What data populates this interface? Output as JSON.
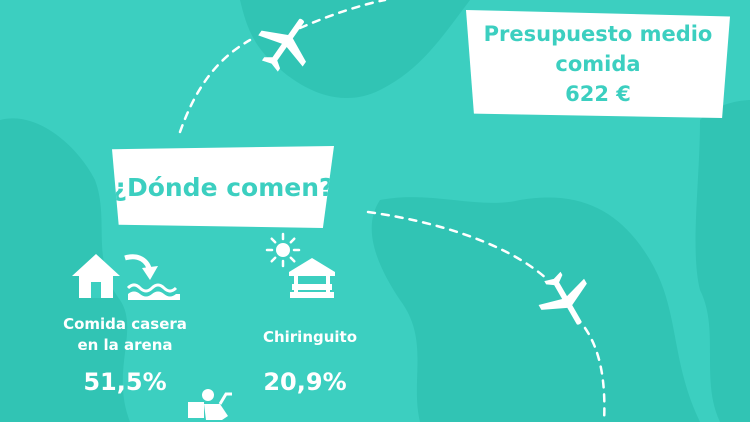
{
  "colors": {
    "background": "#3ccfc0",
    "land": "#30c3b3",
    "card": "#ffffff",
    "accent": "#3ccfc0"
  },
  "budget": {
    "line1": "Presupuesto medio",
    "line2": "comida",
    "amount": "622 €"
  },
  "question": "¿Dónde comen?",
  "stats": [
    {
      "label_line1": "Comida casera",
      "label_line2": "en la arena",
      "value": "51,5%",
      "icons": [
        "house-icon",
        "arrow-icon",
        "waves-icon"
      ]
    },
    {
      "label_line1": "Chiringuito",
      "value": "20,9%",
      "icons": [
        "sun-icon",
        "kiosk-icon"
      ]
    }
  ],
  "decorations": [
    "airplane-icon",
    "airplane-icon",
    "delivery-scooter-icon"
  ]
}
